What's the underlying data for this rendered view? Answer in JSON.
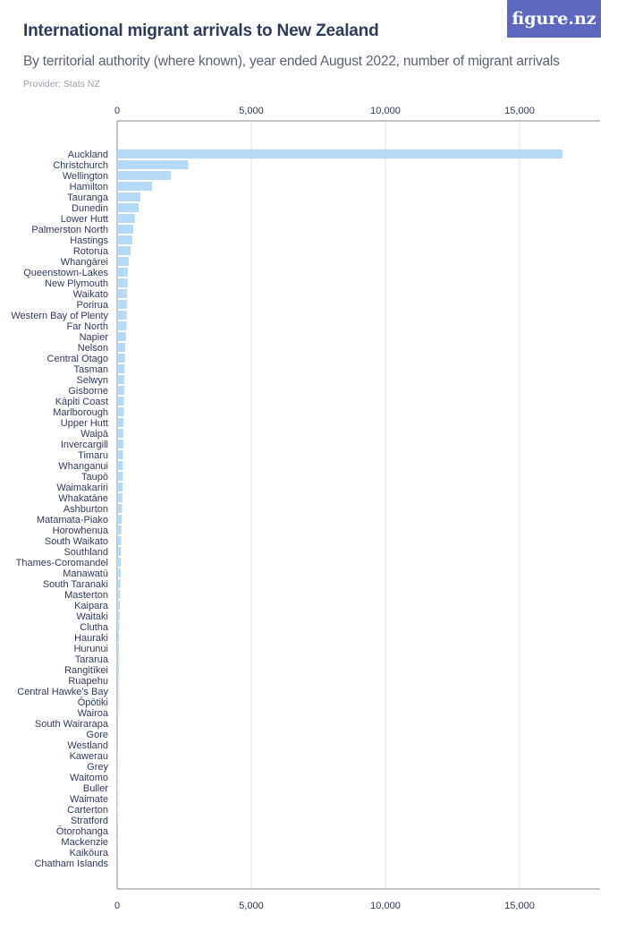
{
  "header": {
    "title": "International migrant arrivals to New Zealand",
    "subtitle": "By territorial authority (where known), year ended August 2022,  number of migrant arrivals",
    "provider": "Provider: Stats NZ",
    "logo": "figure.nz"
  },
  "colors": {
    "bar": "#b4daf7",
    "grid": "#e6e6e6",
    "axis": "#888888",
    "label": "#2f3b5a",
    "tick": "#2f3b5a",
    "logo_bg": "#5c67c0"
  },
  "chart_data": {
    "type": "bar",
    "orientation": "horizontal",
    "xlim": [
      0,
      18000
    ],
    "ticks": [
      0,
      5000,
      10000,
      15000
    ],
    "tick_labels": [
      "0",
      "5,000",
      "10,000",
      "15,000"
    ],
    "tick_positions": "top-and-bottom",
    "grid": true,
    "categories": [
      "Auckland",
      "Christchurch",
      "Wellington",
      "Hamilton",
      "Tauranga",
      "Dunedin",
      "Lower Hutt",
      "Palmerston North",
      "Hastings",
      "Rotorua",
      "Whangārei",
      "Queenstown-Lakes",
      "New Plymouth",
      "Waikato",
      "Porirua",
      "Western Bay of Plenty",
      "Far North",
      "Napier",
      "Nelson",
      "Central Otago",
      "Tasman",
      "Selwyn",
      "Gisborne",
      "Kāpiti Coast",
      "Marlborough",
      "Upper Hutt",
      "Waipā",
      "Invercargill",
      "Timaru",
      "Whanganui",
      "Taupō",
      "Waimakariri",
      "Whakatāne",
      "Ashburton",
      "Matamata-Piako",
      "Horowhenua",
      "South Waikato",
      "Southland",
      "Thames-Coromandel",
      "Manawatū",
      "South Taranaki",
      "Masterton",
      "Kaipara",
      "Waitaki",
      "Clutha",
      "Hauraki",
      "Hurunui",
      "Tararua",
      "Rangitīkei",
      "Ruapehu",
      "Central Hawke's Bay",
      "Ōpōtiki",
      "Wairoa",
      "South Wairarapa",
      "Gore",
      "Westland",
      "Kawerau",
      "Grey",
      "Waitomo",
      "Buller",
      "Waimate",
      "Carterton",
      "Stratford",
      "Ōtorohanga",
      "Mackenzie",
      "Kaikōura",
      "Chatham Islands"
    ],
    "values": [
      16600,
      2650,
      2000,
      1300,
      870,
      800,
      660,
      600,
      560,
      500,
      430,
      400,
      390,
      370,
      360,
      360,
      350,
      330,
      300,
      290,
      270,
      260,
      260,
      250,
      250,
      240,
      230,
      230,
      220,
      210,
      210,
      200,
      190,
      180,
      170,
      160,
      150,
      140,
      140,
      130,
      120,
      110,
      100,
      90,
      80,
      70,
      60,
      60,
      60,
      50,
      50,
      45,
      40,
      40,
      35,
      30,
      25,
      25,
      20,
      20,
      15,
      15,
      12,
      10,
      8,
      5,
      0
    ]
  }
}
